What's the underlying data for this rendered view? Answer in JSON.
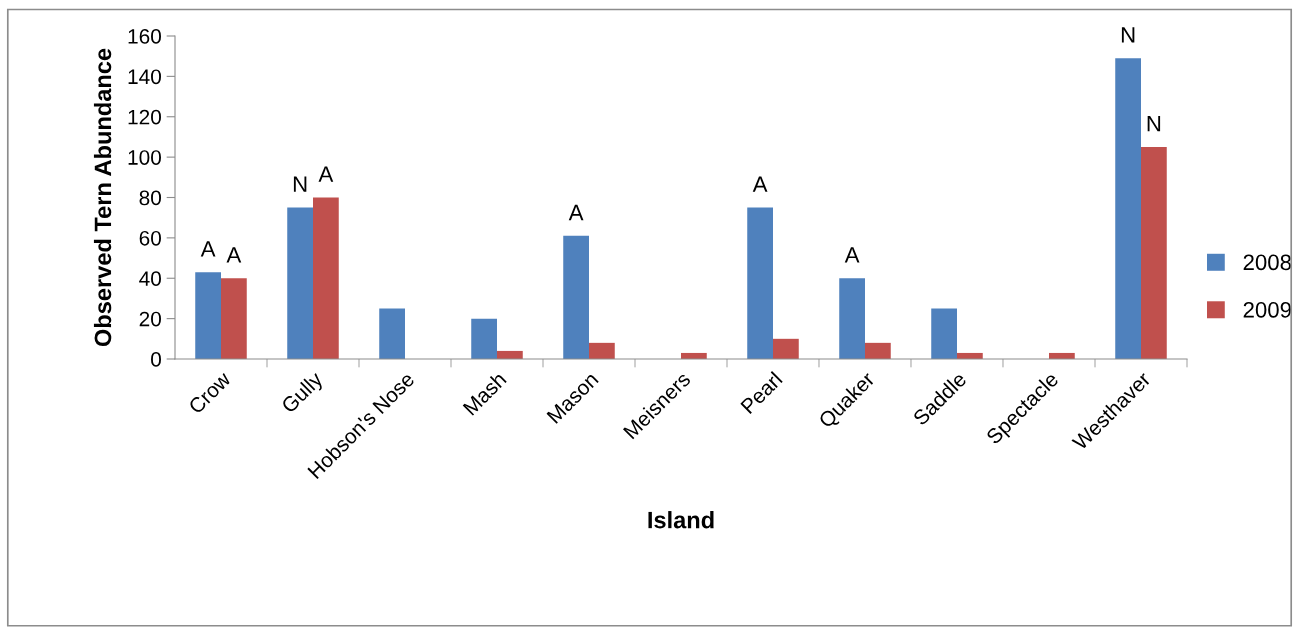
{
  "chart_data": {
    "type": "bar",
    "xlabel": "Island",
    "ylabel": "Observed Tern Abundance",
    "categories": [
      "Crow",
      "Gully",
      "Hobson's Nose",
      "Mash",
      "Mason",
      "Meisners",
      "Pearl",
      "Quaker",
      "Saddle",
      "Spectacle",
      "Westhaver"
    ],
    "series": [
      {
        "name": "2008",
        "color": "#4f81bd",
        "values": [
          43,
          75,
          25,
          20,
          61,
          null,
          75,
          40,
          25,
          null,
          149
        ]
      },
      {
        "name": "2009",
        "color": "#c0504d",
        "values": [
          40,
          80,
          null,
          4,
          8,
          3,
          10,
          8,
          3,
          3,
          105
        ]
      }
    ],
    "ylim": [
      0,
      160
    ],
    "yticks": [
      0,
      20,
      40,
      60,
      80,
      100,
      120,
      140,
      160
    ],
    "grid": false,
    "legend": "right",
    "annotations": [
      {
        "text": "A",
        "x": "Crow",
        "y": 43
      },
      {
        "text": "A",
        "x": "Crow",
        "y": 40
      },
      {
        "text": "N",
        "x": "Gully",
        "y": 75
      },
      {
        "text": "A",
        "x": "Gully",
        "y": 80
      },
      {
        "text": "A",
        "x": "Mason",
        "y": 61
      },
      {
        "text": "A",
        "x": "Pearl",
        "y": 75
      },
      {
        "text": "A",
        "x": "Quaker",
        "y": 40
      },
      {
        "text": "N",
        "x": "Westhaver",
        "y": 149
      },
      {
        "text": "N",
        "x": "Westhaver",
        "y": 105
      }
    ]
  }
}
